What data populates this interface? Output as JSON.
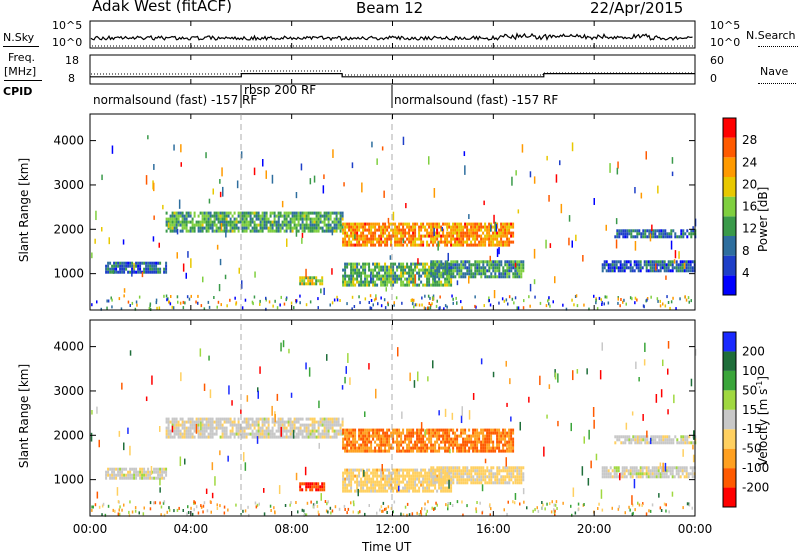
{
  "header": {
    "radar": "Adak West (fitACF)",
    "beam": "Beam 12",
    "date": "22/Apr/2015"
  },
  "top_strip": {
    "left_label": "N.Sky",
    "right_label": "N.Search",
    "left_ticks": [
      "10^5",
      "10^0"
    ],
    "right_ticks": [
      "10^5",
      "10^0"
    ]
  },
  "freq_strip": {
    "left_label_1": "Freq.",
    "left_label_2": "[MHz]",
    "right_label": "Nave",
    "left_ticks": [
      "18",
      "8"
    ],
    "right_ticks": [
      "60",
      "0"
    ]
  },
  "cpid": {
    "label": "CPID",
    "segments": [
      "normalsound (fast) -157 RF",
      "rbsp 200 RF",
      "normalsound (fast) -157 RF"
    ]
  },
  "power_panel": {
    "ylabel": "Slant Range [km]",
    "yticks": [
      "4000",
      "3000",
      "2000",
      "1000"
    ],
    "colorbar_label": "Power [dB]",
    "colorbar_ticks": [
      "28",
      "24",
      "20",
      "16",
      "12",
      "8",
      "4"
    ],
    "colors": [
      "#0000ff",
      "#1e3fc8",
      "#2e6e9e",
      "#3a9a4a",
      "#7fcf3f",
      "#e8c800",
      "#ff9a00",
      "#ff5a00",
      "#ff0000"
    ]
  },
  "velocity_panel": {
    "ylabel": "Slant Range [km]",
    "yticks": [
      "4000",
      "3000",
      "2000",
      "1000"
    ],
    "colorbar_label": "Velocity [m s",
    "colorbar_label_sup": "-1",
    "colorbar_label_end": "]",
    "colorbar_ticks": [
      "200",
      "100",
      "50",
      "15",
      "-15",
      "-50",
      "-100",
      "-200"
    ],
    "colors": [
      "#1a2aff",
      "#1f6e3a",
      "#3aa53a",
      "#a0d840",
      "#c8c8c8",
      "#ffd060",
      "#ffa020",
      "#ff5a00",
      "#ff0000"
    ]
  },
  "x_axis": {
    "ticks": [
      "00:00",
      "04:00",
      "08:00",
      "12:00",
      "16:00",
      "20:00",
      "00:00"
    ],
    "label": "Time UT"
  },
  "chart_data": {
    "type": "heatmap",
    "x_range_hours": [
      0,
      24
    ],
    "y_range_km": [
      180,
      4600
    ],
    "y_ticks_km": [
      1000,
      2000,
      3000,
      4000
    ],
    "power_range_db": [
      0,
      30
    ],
    "velocity_range_ms": [
      -200,
      200
    ],
    "frequency_mhz": [
      {
        "start": 0,
        "end": 6,
        "value": 10.5
      },
      {
        "start": 6,
        "end": 10,
        "value": 11.6
      },
      {
        "start": 10,
        "end": 18,
        "value": 10.5
      },
      {
        "start": 18,
        "end": 24,
        "value": 11.6
      }
    ],
    "echo_regions": [
      {
        "t0": 0.6,
        "t1": 3.0,
        "r0": 1000,
        "r1": 1270,
        "power": 7,
        "velocity": 0
      },
      {
        "t0": 3.0,
        "t1": 10.0,
        "r0": 1950,
        "r1": 2400,
        "power": 12,
        "velocity": -5
      },
      {
        "t0": 8.3,
        "t1": 9.3,
        "r0": 770,
        "r1": 940,
        "power": 16,
        "velocity": -150
      },
      {
        "t0": 10.0,
        "t1": 16.8,
        "r0": 1650,
        "r1": 2150,
        "power": 22,
        "velocity": -110
      },
      {
        "t0": 10.0,
        "t1": 14.3,
        "r0": 720,
        "r1": 1250,
        "power": 13,
        "velocity": -40
      },
      {
        "t0": 13.5,
        "t1": 17.2,
        "r0": 900,
        "r1": 1300,
        "power": 11,
        "velocity": -35
      },
      {
        "t0": 20.3,
        "t1": 24.0,
        "r0": 1050,
        "r1": 1300,
        "power": 7,
        "velocity": 0
      },
      {
        "t0": 20.8,
        "t1": 24.0,
        "r0": 1800,
        "r1": 2000,
        "power": 8,
        "velocity": 0
      }
    ]
  }
}
